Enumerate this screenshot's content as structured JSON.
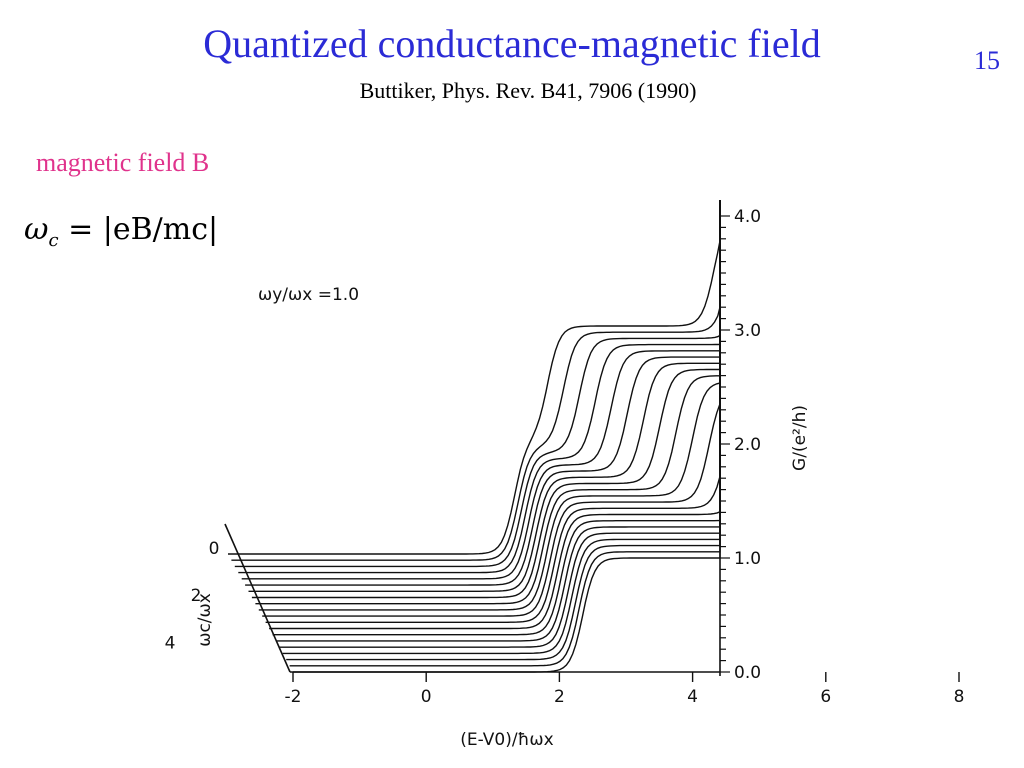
{
  "slide": {
    "title": "Quantized conductance-magnetic field",
    "subtitle": "Buttiker, Phys. Rev. B41, 7906 (1990)",
    "page_number": "15",
    "field_label": "magnetic field B",
    "formula_parts": [
      "ω",
      "c",
      " = |eB/mc|"
    ]
  },
  "colors": {
    "title": "#2b2bd6",
    "label": "#e0338c",
    "curve": "#111111"
  },
  "chart_data": {
    "type": "line",
    "xlabel": "(E-V0)/ħωx",
    "ylabel": "G/(e²/h)",
    "param_label": "ωc/ωx",
    "aspect_label": "ωy/ωx =1.0",
    "x_ticks": [
      "-2",
      "0",
      "2",
      "4",
      "6",
      "8"
    ],
    "y_ticks": [
      "0.0",
      "1.0",
      "2.0",
      "3.0",
      "4.0"
    ],
    "param_ticks": [
      "0",
      "2",
      "4"
    ],
    "xlim": [
      -2,
      8.5
    ],
    "ylim": [
      0,
      4
    ],
    "param_range": [
      0,
      5
    ],
    "curve_count": 20,
    "plateaus": [
      0,
      1,
      2,
      3,
      4
    ]
  }
}
